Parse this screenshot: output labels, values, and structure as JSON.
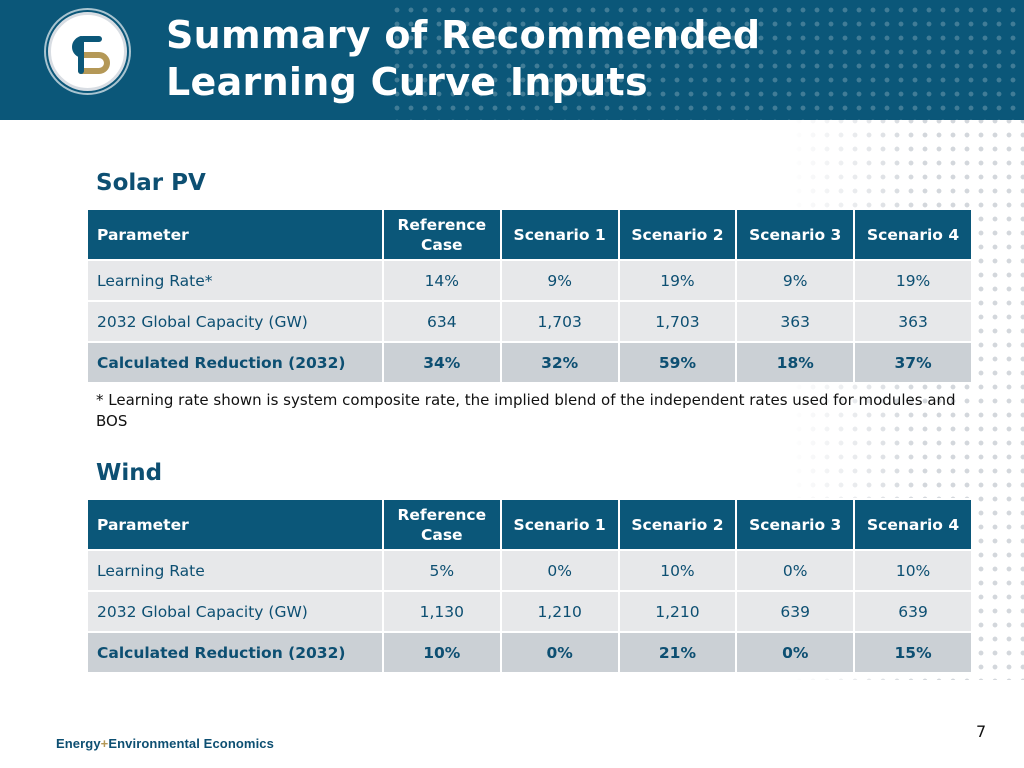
{
  "title": {
    "line1": "Summary of Recommended",
    "line2": "Learning Curve Inputs"
  },
  "logo": {
    "icon": "e3-logo-icon"
  },
  "solar": {
    "heading": "Solar PV",
    "headers": [
      "Parameter",
      "Reference Case",
      "Scenario 1",
      "Scenario 2",
      "Scenario 3",
      "Scenario 4"
    ],
    "rows": [
      [
        "Learning Rate*",
        "14%",
        "9%",
        "19%",
        "9%",
        "19%"
      ],
      [
        "2032 Global Capacity (GW)",
        "634",
        "1,703",
        "1,703",
        "363",
        "363"
      ],
      [
        "Calculated Reduction (2032)",
        "34%",
        "32%",
        "59%",
        "18%",
        "37%"
      ]
    ]
  },
  "footnote": "* Learning rate shown is system composite rate, the implied blend of the independent rates used for modules and BOS",
  "wind": {
    "heading": "Wind",
    "headers": [
      "Parameter",
      "Reference Case",
      "Scenario 1",
      "Scenario 2",
      "Scenario 3",
      "Scenario 4"
    ],
    "rows": [
      [
        "Learning Rate",
        "5%",
        "0%",
        "10%",
        "0%",
        "10%"
      ],
      [
        "2032 Global Capacity (GW)",
        "1,130",
        "1,210",
        "1,210",
        "639",
        "639"
      ],
      [
        "Calculated Reduction (2032)",
        "10%",
        "0%",
        "21%",
        "0%",
        "15%"
      ]
    ]
  },
  "footer": {
    "brand_part1": "Energy",
    "brand_plus": "+",
    "brand_part2": "Environmental Economics",
    "page_number": "7"
  },
  "colors": {
    "primary": "#0b5779",
    "text": "#0d4f72",
    "row_light": "#e7e8ea",
    "row_total": "#cbd0d5",
    "accent_gold": "#b49857"
  }
}
